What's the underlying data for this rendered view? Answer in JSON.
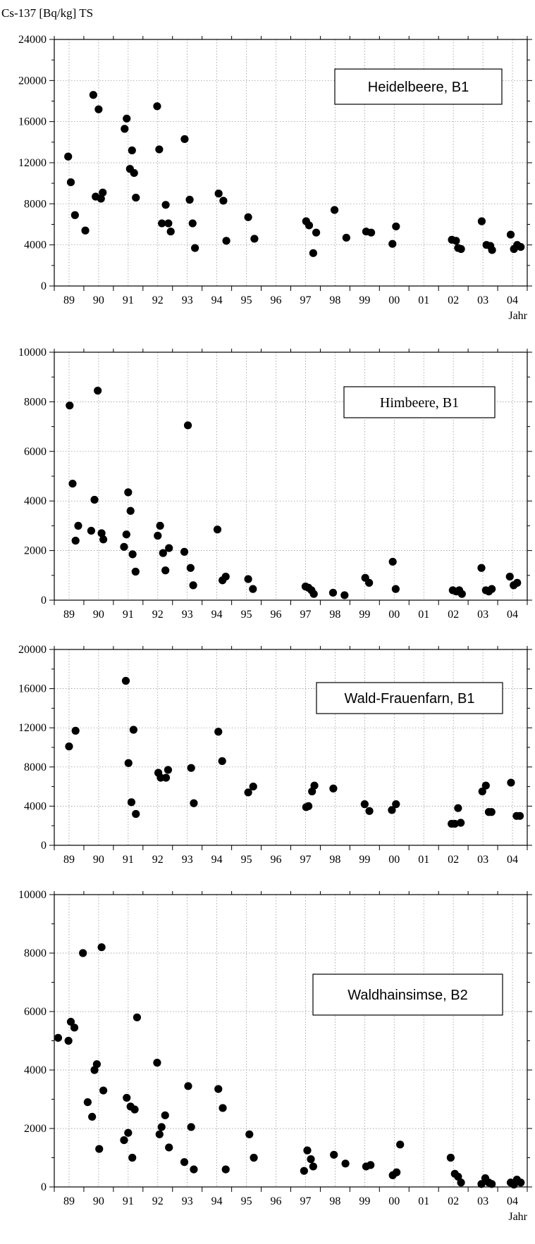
{
  "y_unit_label": "Cs-137 [Bq/kg] TS",
  "x_axis_label": "Jahr",
  "chart_data": [
    {
      "type": "scatter",
      "legend": "Heidelbeere, B1",
      "ylim": [
        0,
        24000
      ],
      "yticks": [
        "0",
        "4000",
        "8000",
        "12000",
        "16000",
        "20000",
        "24000"
      ],
      "xlim": [
        1988.0,
        2004.0
      ],
      "xtick_labels": [
        "89",
        "90",
        "91",
        "92",
        "93",
        "94",
        "95",
        "96",
        "97",
        "98",
        "99",
        "00",
        "01",
        "02",
        "03",
        "04"
      ],
      "show_xlabel": true,
      "grid": true,
      "points": [
        [
          1988.47,
          12600
        ],
        [
          1988.56,
          10100
        ],
        [
          1988.7,
          6900
        ],
        [
          1989.05,
          5400
        ],
        [
          1989.32,
          18600
        ],
        [
          1989.4,
          8700
        ],
        [
          1989.5,
          17200
        ],
        [
          1989.58,
          8500
        ],
        [
          1989.64,
          9100
        ],
        [
          1990.38,
          15300
        ],
        [
          1990.45,
          16300
        ],
        [
          1990.56,
          11400
        ],
        [
          1990.63,
          13200
        ],
        [
          1990.7,
          11000
        ],
        [
          1990.76,
          8600
        ],
        [
          1991.48,
          17500
        ],
        [
          1991.55,
          13300
        ],
        [
          1991.64,
          6100
        ],
        [
          1991.77,
          7900
        ],
        [
          1991.86,
          6100
        ],
        [
          1991.94,
          5300
        ],
        [
          1992.41,
          14300
        ],
        [
          1992.58,
          8400
        ],
        [
          1992.68,
          6100
        ],
        [
          1992.76,
          3700
        ],
        [
          1993.56,
          9000
        ],
        [
          1993.72,
          8300
        ],
        [
          1993.82,
          4400
        ],
        [
          1994.56,
          6700
        ],
        [
          1994.77,
          4600
        ],
        [
          1996.52,
          6300
        ],
        [
          1996.62,
          5900
        ],
        [
          1996.76,
          3200
        ],
        [
          1996.86,
          5200
        ],
        [
          1997.48,
          7400
        ],
        [
          1997.88,
          4700
        ],
        [
          1998.55,
          5300
        ],
        [
          1998.72,
          5200
        ],
        [
          1999.44,
          4100
        ],
        [
          1999.56,
          5800
        ],
        [
          2001.45,
          4500
        ],
        [
          2001.59,
          4400
        ],
        [
          2001.66,
          3700
        ],
        [
          2001.76,
          3600
        ],
        [
          2002.46,
          6300
        ],
        [
          2002.62,
          4000
        ],
        [
          2002.75,
          3900
        ],
        [
          2002.81,
          3500
        ],
        [
          2003.44,
          5000
        ],
        [
          2003.55,
          3600
        ],
        [
          2003.66,
          4000
        ],
        [
          2003.78,
          3800
        ]
      ]
    },
    {
      "type": "scatter",
      "legend": "Himbeere, B1",
      "ylim": [
        0,
        10000
      ],
      "yticks": [
        "0",
        "2000",
        "4000",
        "6000",
        "8000",
        "10000"
      ],
      "xlim": [
        1988.0,
        2004.0
      ],
      "xtick_labels": [
        "89",
        "90",
        "91",
        "92",
        "93",
        "94",
        "95",
        "96",
        "97",
        "98",
        "99",
        "00",
        "01",
        "02",
        "03",
        "04"
      ],
      "show_xlabel": false,
      "grid": true,
      "points": [
        [
          1988.52,
          7850
        ],
        [
          1988.62,
          4700
        ],
        [
          1988.72,
          2400
        ],
        [
          1988.81,
          3000
        ],
        [
          1989.25,
          2800
        ],
        [
          1989.36,
          4050
        ],
        [
          1989.47,
          8450
        ],
        [
          1989.6,
          2700
        ],
        [
          1989.66,
          2450
        ],
        [
          1990.36,
          2150
        ],
        [
          1990.44,
          2650
        ],
        [
          1990.5,
          4350
        ],
        [
          1990.58,
          3600
        ],
        [
          1990.65,
          1850
        ],
        [
          1990.75,
          1150
        ],
        [
          1991.5,
          2600
        ],
        [
          1991.58,
          3000
        ],
        [
          1991.68,
          1900
        ],
        [
          1991.76,
          1200
        ],
        [
          1991.88,
          2100
        ],
        [
          1992.4,
          1950
        ],
        [
          1992.52,
          7050
        ],
        [
          1992.61,
          1300
        ],
        [
          1992.7,
          600
        ],
        [
          1993.52,
          2850
        ],
        [
          1993.69,
          800
        ],
        [
          1993.8,
          950
        ],
        [
          1994.56,
          850
        ],
        [
          1994.72,
          450
        ],
        [
          1996.5,
          550
        ],
        [
          1996.6,
          500
        ],
        [
          1996.7,
          400
        ],
        [
          1996.78,
          250
        ],
        [
          1997.43,
          300
        ],
        [
          1997.82,
          200
        ],
        [
          1998.52,
          900
        ],
        [
          1998.65,
          700
        ],
        [
          1999.45,
          1550
        ],
        [
          1999.55,
          450
        ],
        [
          2001.48,
          400
        ],
        [
          2001.6,
          350
        ],
        [
          2001.7,
          400
        ],
        [
          2001.79,
          250
        ],
        [
          2002.45,
          1300
        ],
        [
          2002.6,
          400
        ],
        [
          2002.7,
          350
        ],
        [
          2002.8,
          450
        ],
        [
          2003.41,
          950
        ],
        [
          2003.54,
          600
        ],
        [
          2003.66,
          700
        ]
      ]
    },
    {
      "type": "scatter",
      "legend": "Wald-Frauenfarn, B1",
      "ylim": [
        0,
        20000
      ],
      "yticks": [
        "0",
        "4000",
        "8000",
        "12000",
        "16000",
        "20000"
      ],
      "xlim": [
        1988.0,
        2004.0
      ],
      "xtick_labels": [
        "89",
        "90",
        "91",
        "92",
        "93",
        "94",
        "95",
        "96",
        "97",
        "98",
        "99",
        "00",
        "01",
        "02",
        "03",
        "04"
      ],
      "show_xlabel": false,
      "grid": true,
      "points": [
        [
          1988.5,
          10100
        ],
        [
          1988.72,
          11700
        ],
        [
          1990.42,
          16800
        ],
        [
          1990.51,
          8400
        ],
        [
          1990.61,
          4400
        ],
        [
          1990.68,
          11800
        ],
        [
          1990.76,
          3200
        ],
        [
          1991.52,
          7400
        ],
        [
          1991.6,
          6900
        ],
        [
          1991.78,
          6900
        ],
        [
          1991.85,
          7700
        ],
        [
          1992.63,
          7900
        ],
        [
          1992.72,
          4300
        ],
        [
          1993.55,
          11600
        ],
        [
          1993.68,
          8600
        ],
        [
          1994.56,
          5400
        ],
        [
          1994.73,
          6000
        ],
        [
          1996.52,
          3900
        ],
        [
          1996.6,
          4000
        ],
        [
          1996.72,
          5500
        ],
        [
          1996.8,
          6100
        ],
        [
          1997.44,
          5800
        ],
        [
          1998.5,
          4200
        ],
        [
          1998.66,
          3500
        ],
        [
          1999.42,
          3600
        ],
        [
          1999.56,
          4200
        ],
        [
          2001.44,
          2200
        ],
        [
          2001.55,
          2200
        ],
        [
          2001.66,
          3800
        ],
        [
          2001.75,
          2300
        ],
        [
          2002.48,
          5500
        ],
        [
          2002.6,
          6100
        ],
        [
          2002.7,
          3400
        ],
        [
          2002.79,
          3400
        ],
        [
          2003.45,
          6400
        ],
        [
          2003.64,
          3000
        ],
        [
          2003.75,
          3000
        ]
      ]
    },
    {
      "type": "scatter",
      "legend": "Waldhainsimse, B2",
      "ylim": [
        0,
        10000
      ],
      "yticks": [
        "0",
        "2000",
        "4000",
        "6000",
        "8000",
        "10000"
      ],
      "xlim": [
        1988.0,
        2004.0
      ],
      "xtick_labels": [
        "89",
        "90",
        "91",
        "92",
        "93",
        "94",
        "95",
        "96",
        "97",
        "98",
        "99",
        "00",
        "01",
        "02",
        "03",
        "04"
      ],
      "show_xlabel": true,
      "grid": true,
      "points": [
        [
          1988.13,
          5100
        ],
        [
          1988.48,
          5000
        ],
        [
          1988.56,
          5650
        ],
        [
          1988.68,
          5450
        ],
        [
          1988.97,
          8000
        ],
        [
          1989.13,
          2900
        ],
        [
          1989.28,
          2400
        ],
        [
          1989.36,
          4000
        ],
        [
          1989.44,
          4200
        ],
        [
          1989.52,
          1300
        ],
        [
          1989.6,
          8200
        ],
        [
          1989.66,
          3300
        ],
        [
          1990.36,
          1600
        ],
        [
          1990.45,
          3050
        ],
        [
          1990.5,
          1850
        ],
        [
          1990.58,
          2750
        ],
        [
          1990.64,
          1000
        ],
        [
          1990.72,
          2650
        ],
        [
          1990.8,
          5800
        ],
        [
          1991.48,
          4250
        ],
        [
          1991.56,
          1800
        ],
        [
          1991.63,
          2050
        ],
        [
          1991.75,
          2450
        ],
        [
          1991.88,
          1350
        ],
        [
          1992.4,
          850
        ],
        [
          1992.53,
          3450
        ],
        [
          1992.63,
          2050
        ],
        [
          1992.72,
          600
        ],
        [
          1993.55,
          3350
        ],
        [
          1993.7,
          2700
        ],
        [
          1993.8,
          600
        ],
        [
          1994.6,
          1800
        ],
        [
          1994.75,
          1000
        ],
        [
          1996.45,
          550
        ],
        [
          1996.56,
          1250
        ],
        [
          1996.68,
          950
        ],
        [
          1996.76,
          700
        ],
        [
          1997.46,
          1100
        ],
        [
          1997.85,
          800
        ],
        [
          1998.55,
          700
        ],
        [
          1998.7,
          750
        ],
        [
          1999.45,
          400
        ],
        [
          1999.58,
          500
        ],
        [
          1999.7,
          1450
        ],
        [
          2001.41,
          1000
        ],
        [
          2001.55,
          450
        ],
        [
          2001.66,
          350
        ],
        [
          2001.76,
          150
        ],
        [
          2002.45,
          100
        ],
        [
          2002.58,
          300
        ],
        [
          2002.7,
          150
        ],
        [
          2002.8,
          100
        ],
        [
          2003.44,
          150
        ],
        [
          2003.55,
          80
        ],
        [
          2003.65,
          250
        ],
        [
          2003.78,
          150
        ]
      ]
    }
  ]
}
